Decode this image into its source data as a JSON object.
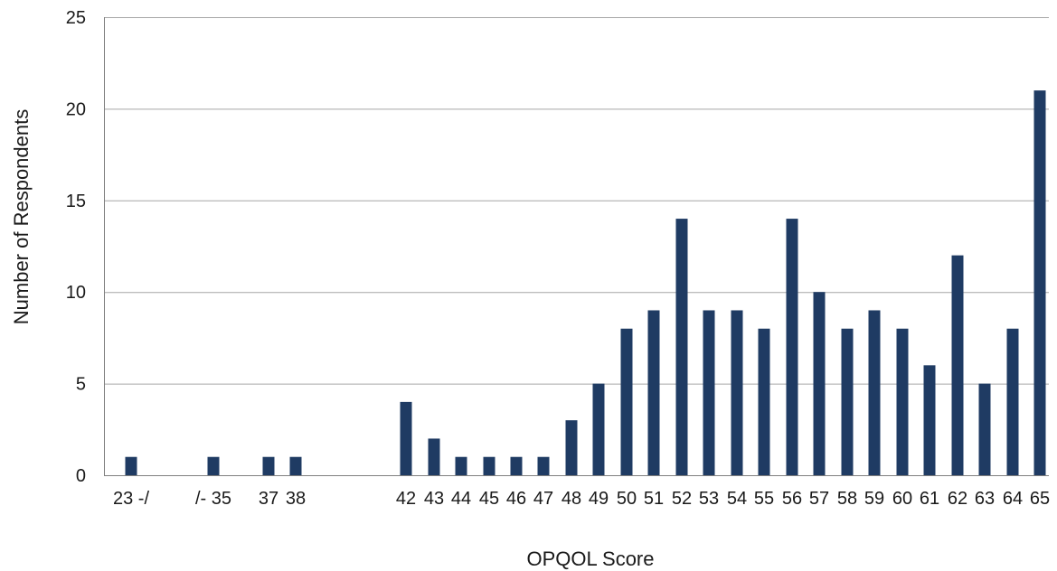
{
  "chart_data": {
    "type": "bar",
    "title": "",
    "xlabel": "OPQOL Score",
    "ylabel": "Number of Respondents",
    "ylim": [
      0,
      25
    ],
    "yticks": [
      "0",
      "5",
      "10",
      "15",
      "20",
      "25"
    ],
    "grid": "horizontal",
    "bar_color": "#1f3b63",
    "bars": [
      {
        "x": 23,
        "value": 1
      },
      {
        "x": 35,
        "value": 1
      },
      {
        "x": 37,
        "value": 1
      },
      {
        "x": 38,
        "value": 1
      },
      {
        "x": 42,
        "value": 4
      },
      {
        "x": 43,
        "value": 2
      },
      {
        "x": 44,
        "value": 1
      },
      {
        "x": 45,
        "value": 1
      },
      {
        "x": 46,
        "value": 1
      },
      {
        "x": 47,
        "value": 1
      },
      {
        "x": 48,
        "value": 3
      },
      {
        "x": 49,
        "value": 5
      },
      {
        "x": 50,
        "value": 8
      },
      {
        "x": 51,
        "value": 9
      },
      {
        "x": 52,
        "value": 14
      },
      {
        "x": 53,
        "value": 9
      },
      {
        "x": 54,
        "value": 9
      },
      {
        "x": 55,
        "value": 8
      },
      {
        "x": 56,
        "value": 14
      },
      {
        "x": 57,
        "value": 10
      },
      {
        "x": 58,
        "value": 8
      },
      {
        "x": 59,
        "value": 9
      },
      {
        "x": 60,
        "value": 8
      },
      {
        "x": 61,
        "value": 6
      },
      {
        "x": 62,
        "value": 12
      },
      {
        "x": 63,
        "value": 5
      },
      {
        "x": 64,
        "value": 8
      },
      {
        "x": 65,
        "value": 21
      }
    ],
    "x_tick_labels": [
      {
        "x": 23,
        "label": "23 -/"
      },
      {
        "x": 35,
        "label": "/- 35"
      },
      {
        "x": 37,
        "label": "37"
      },
      {
        "x": 38,
        "label": "38"
      },
      {
        "x": 42,
        "label": "42"
      },
      {
        "x": 43,
        "label": "43"
      },
      {
        "x": 44,
        "label": "44"
      },
      {
        "x": 45,
        "label": "45"
      },
      {
        "x": 46,
        "label": "46"
      },
      {
        "x": 47,
        "label": "47"
      },
      {
        "x": 48,
        "label": "48"
      },
      {
        "x": 49,
        "label": "49"
      },
      {
        "x": 50,
        "label": "50"
      },
      {
        "x": 51,
        "label": "51"
      },
      {
        "x": 52,
        "label": "52"
      },
      {
        "x": 53,
        "label": "53"
      },
      {
        "x": 54,
        "label": "54"
      },
      {
        "x": 55,
        "label": "55"
      },
      {
        "x": 56,
        "label": "56"
      },
      {
        "x": 57,
        "label": "57"
      },
      {
        "x": 58,
        "label": "58"
      },
      {
        "x": 59,
        "label": "59"
      },
      {
        "x": 60,
        "label": "60"
      },
      {
        "x": 61,
        "label": "61"
      },
      {
        "x": 62,
        "label": "62"
      },
      {
        "x": 63,
        "label": "63"
      },
      {
        "x": 64,
        "label": "64"
      },
      {
        "x": 65,
        "label": "65"
      }
    ]
  }
}
